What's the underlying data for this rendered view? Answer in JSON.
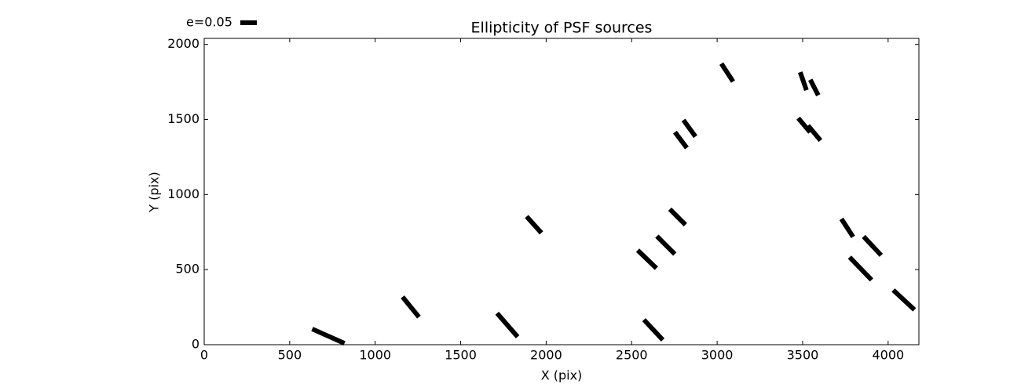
{
  "chart_data": {
    "type": "whisker",
    "title": "Ellipticity of PSF sources",
    "xlabel": "X (pix)",
    "ylabel": "Y (pix)",
    "key": {
      "value": 0.05,
      "label": "e=0.05"
    },
    "color": "#000000",
    "x": [
      726,
      1208,
      1773,
      1929,
      2627,
      2590,
      2700,
      2769,
      2788,
      2838,
      3059,
      3504,
      3568,
      3509,
      3568,
      3761,
      3908,
      3839,
      4092
    ],
    "y": [
      57,
      251,
      131,
      799,
      99,
      569,
      663,
      851,
      1363,
      1441,
      1812,
      1755,
      1713,
      1462,
      1410,
      778,
      658,
      507,
      298
    ],
    "e": [
      0.107,
      0.079,
      0.095,
      0.067,
      0.084,
      0.079,
      0.077,
      0.067,
      0.06,
      0.062,
      0.065,
      0.058,
      0.053,
      0.056,
      0.059,
      0.065,
      0.078,
      0.096,
      0.088
    ],
    "angle": [
      -24,
      -51,
      -49,
      -48,
      -47,
      -44,
      -45,
      -45,
      -53,
      -54,
      -57,
      -71,
      -63,
      -50,
      -50,
      -57,
      -47,
      -46,
      -43
    ],
    "xlim": [
      0,
      4180
    ],
    "ylim": [
      0,
      2040
    ],
    "xticks": [
      0,
      500,
      1000,
      1500,
      2000,
      2500,
      3000,
      3500,
      4000
    ],
    "yticks": [
      0,
      500,
      1000,
      1500,
      2000
    ]
  }
}
